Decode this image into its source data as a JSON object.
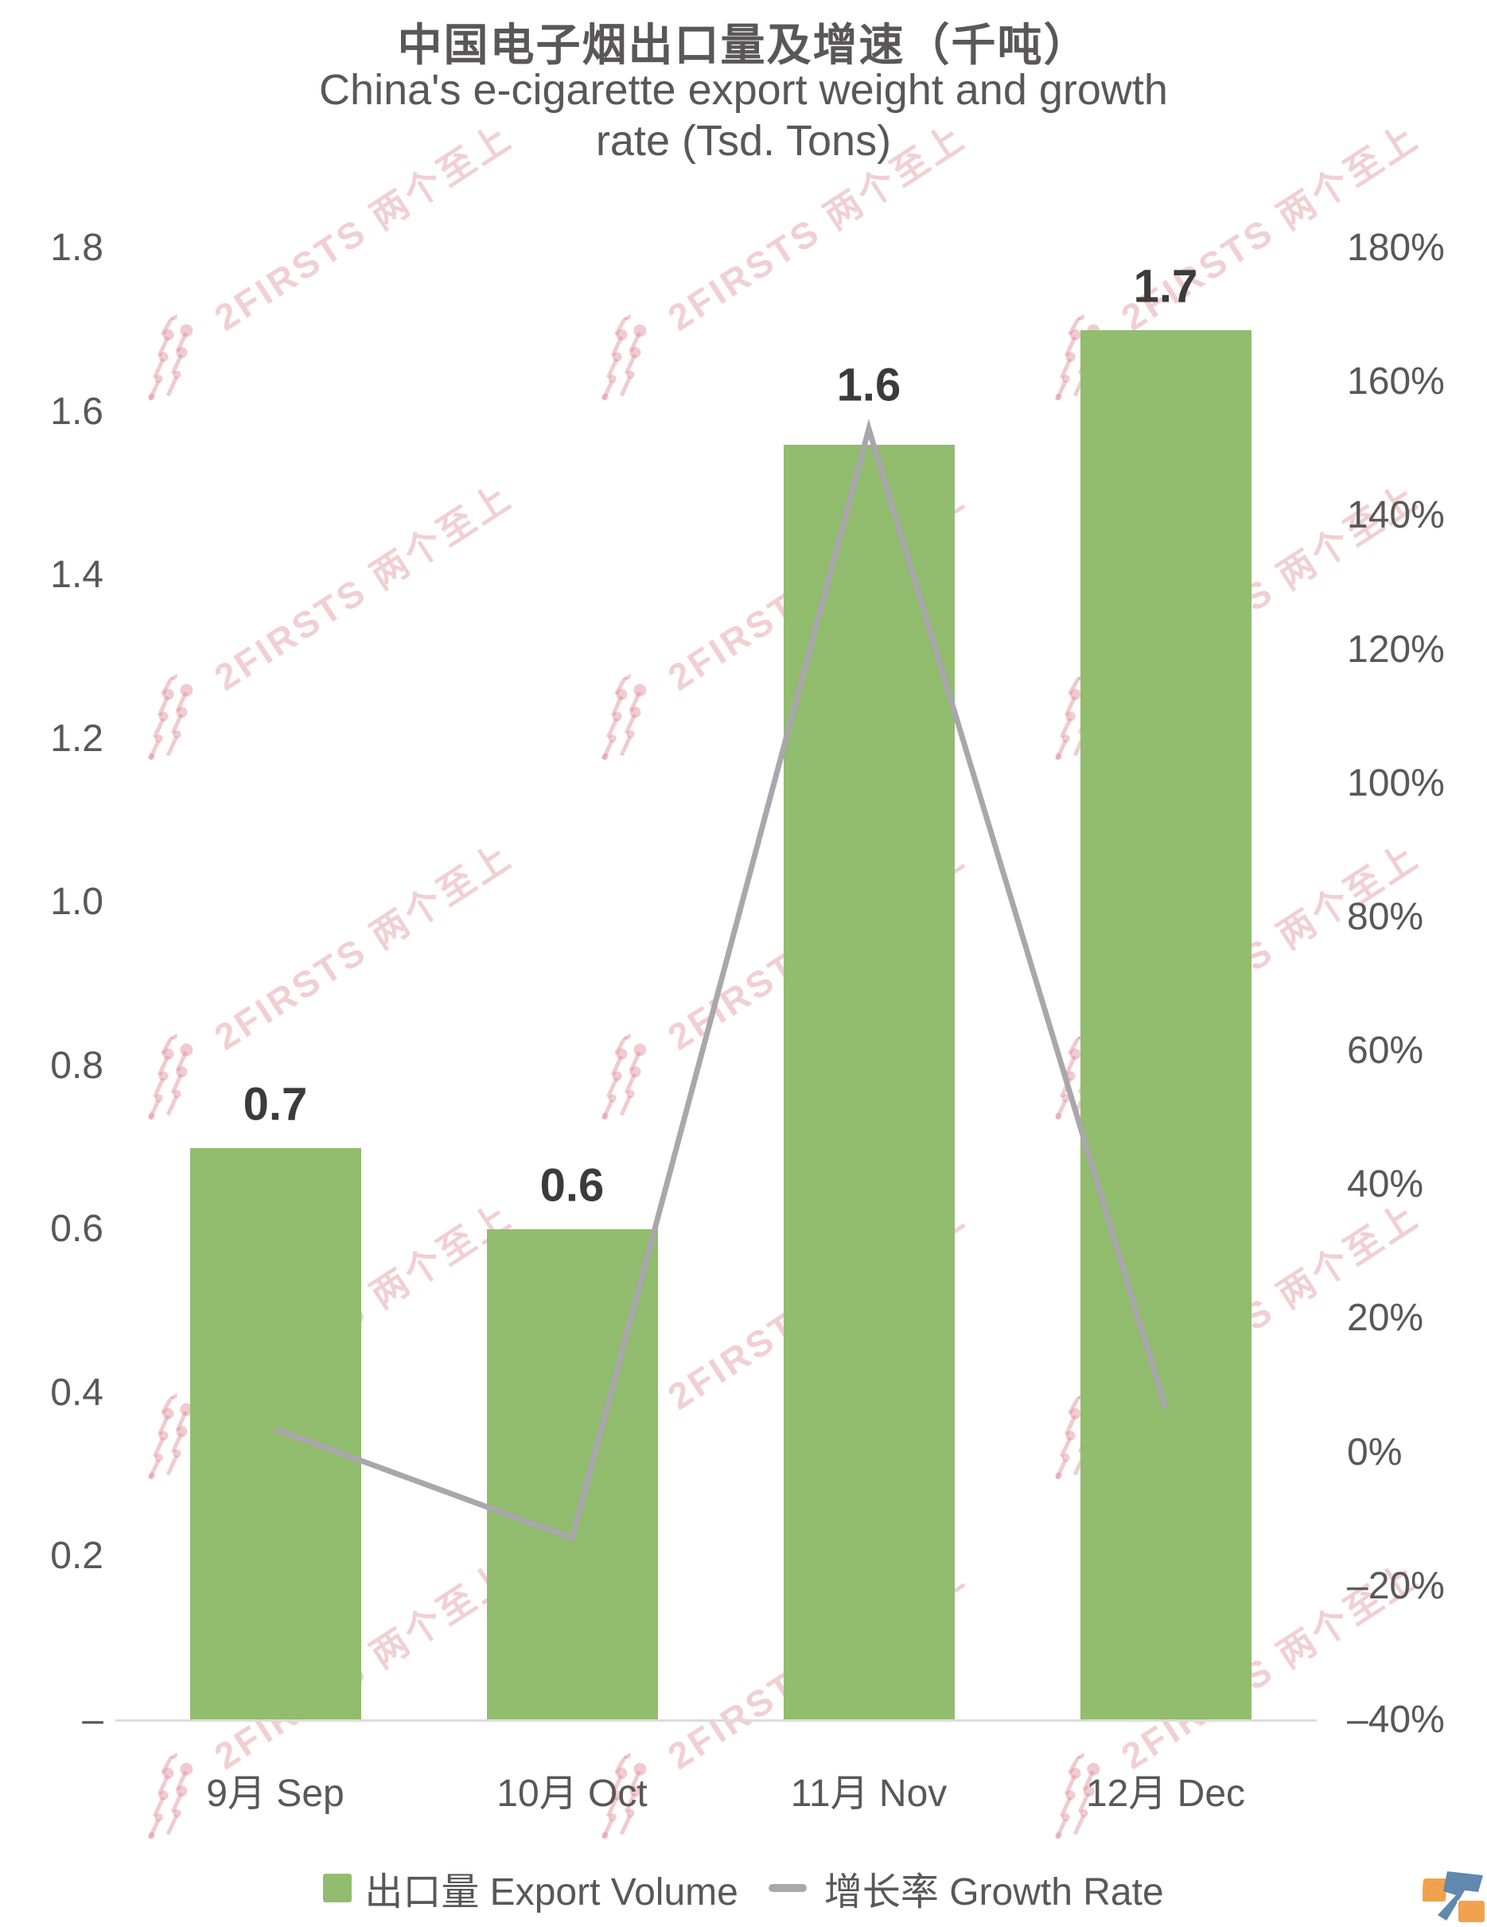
{
  "title": {
    "line1_cn": "中国电子烟出口量及增速（千吨）",
    "line2_en": "China's e-cigarette export weight and growth",
    "line3_en": "rate (Tsd. Tons)"
  },
  "watermark": {
    "text": "2FIRSTS 两个至上"
  },
  "legend": {
    "bar_label": "出口量 Export Volume",
    "line_label": "增长率 Growth Rate"
  },
  "colors": {
    "bar": "#92bc6e",
    "line": "#a9a6ac",
    "axis_text": "#595757",
    "data_label_text": "#3b3b3b",
    "axis_line": "#dcdcdc",
    "watermark_pink": "#de8c94",
    "logo_orange": "#f2a24d",
    "logo_blue": "#6188ae"
  },
  "chart_data": {
    "type": "bar",
    "subtype": "bar-with-line-overlay",
    "title": "中国电子烟出口量及增速（千吨） China's e-cigarette export weight and growth rate (Tsd. Tons)",
    "categories": [
      "9月 Sep",
      "10月 Oct",
      "11月 Nov",
      "12月 Dec"
    ],
    "series": [
      {
        "name": "出口量 Export Volume",
        "type": "bar",
        "axis": "left",
        "values": [
          0.7,
          0.6,
          1.6,
          1.7
        ],
        "values_as_drawn": [
          0.7,
          0.6,
          1.56,
          1.7
        ],
        "data_labels": [
          "0.7",
          "0.6",
          "1.6",
          "1.7"
        ]
      },
      {
        "name": "增长率 Growth Rate",
        "type": "line",
        "axis": "right",
        "values_pct": [
          3.5,
          -12.8,
          153,
          6.6
        ]
      }
    ],
    "left_axis": {
      "min": 0,
      "max": 1.8,
      "step": 0.2,
      "tick_labels": [
        "1.8",
        "1.6",
        "1.4",
        "1.2",
        "1.0",
        "0.8",
        "0.6",
        "0.4",
        "0.2",
        "–"
      ]
    },
    "right_axis": {
      "min": -40,
      "max": 180,
      "step": 20,
      "tick_labels": [
        "180%",
        "160%",
        "140%",
        "120%",
        "100%",
        "80%",
        "60%",
        "40%",
        "20%",
        "0%",
        "–20%",
        "–40%"
      ]
    },
    "grid": false,
    "legend_position": "bottom"
  }
}
